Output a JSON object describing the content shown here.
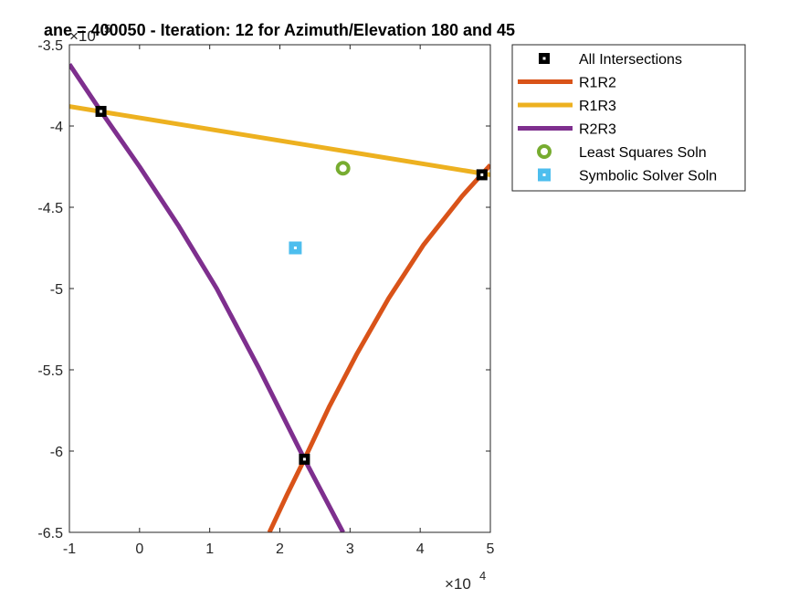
{
  "chart_data": {
    "type": "line",
    "title": "ane = 400050 - Iteration: 12 for Azimuth/Elevation 180 and 45",
    "xlabel": "",
    "ylabel": "",
    "xlim": [
      -10000,
      50000
    ],
    "ylim": [
      -650000,
      -350000
    ],
    "x_ticks": [
      -10000,
      0,
      10000,
      20000,
      30000,
      40000,
      50000
    ],
    "x_tick_labels": [
      "-1",
      "0",
      "1",
      "2",
      "3",
      "4",
      "5"
    ],
    "y_ticks": [
      -350000,
      -400000,
      -450000,
      -500000,
      -550000,
      -600000,
      -650000
    ],
    "y_tick_labels": [
      "-3.5",
      "-4",
      "-4.5",
      "-5",
      "-5.5",
      "-6",
      "-6.5"
    ],
    "x_multiplier": {
      "base": "×10",
      "exp": "4"
    },
    "y_multiplier": {
      "base": "×10",
      "exp": "5"
    },
    "grid": false,
    "legend_placement": "outside-right-top",
    "series": [
      {
        "name": "All Intersections",
        "kind": "marker",
        "marker": "square",
        "color": "#000000",
        "x": [
          -5500,
          48800,
          23500
        ],
        "y": [
          -391000,
          -430000,
          -605000
        ]
      },
      {
        "name": "R1R2",
        "kind": "line",
        "color": "#D95319",
        "x": [
          18500,
          21000,
          23500,
          27000,
          31000,
          35500,
          40500,
          46000,
          50000
        ],
        "y": [
          -650000,
          -627000,
          -605000,
          -573000,
          -540000,
          -506000,
          -473000,
          -443000,
          -424000
        ]
      },
      {
        "name": "R1R3",
        "kind": "line",
        "color": "#EDB120",
        "x": [
          -10000,
          50000
        ],
        "y": [
          -388000,
          -430000
        ]
      },
      {
        "name": "R2R3",
        "kind": "line",
        "color": "#7E2F8E",
        "x": [
          -10000,
          -5500,
          0,
          5500,
          11000,
          17000,
          23500,
          29000
        ],
        "y": [
          -362000,
          -391000,
          -425000,
          -461000,
          -500000,
          -549000,
          -605000,
          -650000
        ]
      },
      {
        "name": "Least Squares Soln",
        "kind": "marker",
        "marker": "circle",
        "color": "#77AC30",
        "x": [
          29000
        ],
        "y": [
          -426000
        ]
      },
      {
        "name": "Symbolic Solver Soln",
        "kind": "marker",
        "marker": "square-dot",
        "color": "#4DBEEE",
        "x": [
          22200
        ],
        "y": [
          -475000
        ]
      }
    ]
  }
}
